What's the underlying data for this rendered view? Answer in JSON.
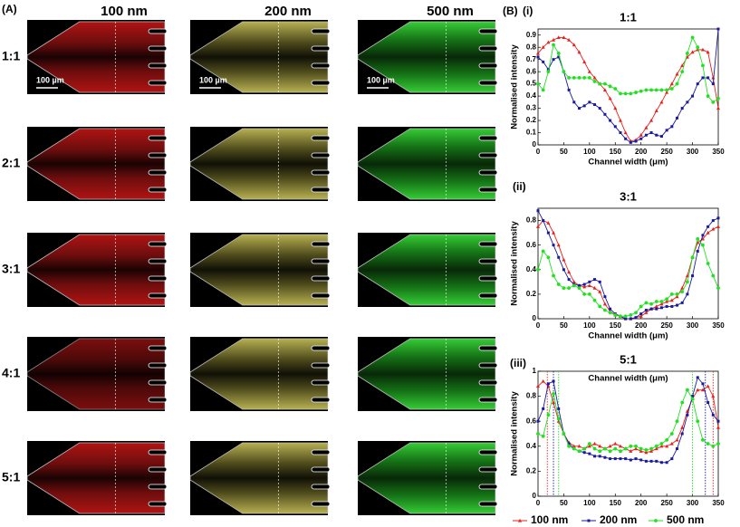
{
  "panel_a": {
    "label": "(A)",
    "columns": [
      "100 nm",
      "200 nm",
      "500 nm"
    ],
    "rows": [
      "1:1",
      "2:1",
      "3:1",
      "4:1",
      "5:1"
    ],
    "scale_bar": "100 µm"
  },
  "panel_b": {
    "label": "(B)",
    "subpanels": [
      "(i)",
      "(ii)",
      "(iii)"
    ]
  },
  "chart_data": [
    {
      "type": "line",
      "title": "1:1",
      "x_label": "Channel width (μm)",
      "y_label": "Normalised intensity",
      "x": [
        0,
        10,
        20,
        30,
        40,
        50,
        60,
        70,
        80,
        90,
        100,
        110,
        120,
        130,
        140,
        150,
        160,
        170,
        180,
        190,
        200,
        210,
        220,
        230,
        240,
        250,
        260,
        270,
        280,
        290,
        300,
        310,
        320,
        330,
        340,
        350
      ],
      "xlim": [
        0,
        350
      ],
      "xticks": [
        0,
        50,
        100,
        150,
        200,
        250,
        300,
        350
      ],
      "ylim": [
        0,
        0.95
      ],
      "yticks": [
        0,
        0.1,
        0.2,
        0.3,
        0.4,
        0.5,
        0.6,
        0.7,
        0.8,
        0.9
      ],
      "series": [
        {
          "name": "100 nm",
          "color": "#e8201c",
          "marker": "triangle",
          "values": [
            0.75,
            0.8,
            0.84,
            0.86,
            0.88,
            0.88,
            0.86,
            0.82,
            0.76,
            0.68,
            0.6,
            0.55,
            0.5,
            0.45,
            0.38,
            0.3,
            0.2,
            0.1,
            0.03,
            0.04,
            0.08,
            0.14,
            0.2,
            0.28,
            0.35,
            0.43,
            0.5,
            0.58,
            0.65,
            0.72,
            0.76,
            0.78,
            0.78,
            0.76,
            0.55,
            0.3
          ]
        },
        {
          "name": "200 nm",
          "color": "#1a1aa0",
          "marker": "square",
          "values": [
            0.72,
            0.68,
            0.62,
            0.7,
            0.72,
            0.6,
            0.45,
            0.35,
            0.3,
            0.32,
            0.35,
            0.33,
            0.3,
            0.25,
            0.2,
            0.15,
            0.1,
            0.05,
            0.02,
            0.03,
            0.05,
            0.08,
            0.1,
            0.08,
            0.07,
            0.12,
            0.15,
            0.22,
            0.3,
            0.35,
            0.4,
            0.5,
            0.55,
            0.55,
            0.5,
            0.95
          ]
        },
        {
          "name": "500 nm",
          "color": "#22e022",
          "marker": "circle",
          "values": [
            0.5,
            0.45,
            0.6,
            0.82,
            0.75,
            0.6,
            0.55,
            0.55,
            0.55,
            0.55,
            0.55,
            0.52,
            0.5,
            0.5,
            0.48,
            0.46,
            0.42,
            0.42,
            0.42,
            0.43,
            0.44,
            0.45,
            0.45,
            0.45,
            0.45,
            0.45,
            0.46,
            0.5,
            0.6,
            0.75,
            0.88,
            0.8,
            0.65,
            0.4,
            0.35,
            0.38
          ]
        }
      ]
    },
    {
      "type": "line",
      "title": "3:1",
      "x_label": "Channel width (μm)",
      "y_label": "Normalised intensity",
      "x": [
        0,
        10,
        20,
        30,
        40,
        50,
        60,
        70,
        80,
        90,
        100,
        110,
        120,
        130,
        140,
        150,
        160,
        170,
        180,
        190,
        200,
        210,
        220,
        230,
        240,
        250,
        260,
        270,
        280,
        290,
        300,
        310,
        320,
        330,
        340,
        350
      ],
      "xlim": [
        0,
        350
      ],
      "xticks": [
        0,
        50,
        100,
        150,
        200,
        250,
        300,
        350
      ],
      "ylim": [
        0,
        0.9
      ],
      "yticks": [
        0,
        0.2,
        0.4,
        0.6,
        0.8
      ],
      "series": [
        {
          "color": "#e8201c",
          "marker": "triangle",
          "values": [
            0.75,
            0.8,
            0.78,
            0.7,
            0.6,
            0.48,
            0.38,
            0.3,
            0.27,
            0.26,
            0.27,
            0.25,
            0.22,
            0.12,
            0.06,
            0.03,
            0.02,
            0,
            0,
            0.01,
            0.02,
            0.05,
            0.08,
            0.1,
            0.12,
            0.14,
            0.15,
            0.18,
            0.25,
            0.35,
            0.5,
            0.62,
            0.65,
            0.7,
            0.73,
            0.75
          ]
        },
        {
          "color": "#1a1aa0",
          "marker": "square",
          "values": [
            0.88,
            0.8,
            0.7,
            0.6,
            0.5,
            0.4,
            0.32,
            0.28,
            0.27,
            0.28,
            0.3,
            0.32,
            0.3,
            0.18,
            0.08,
            0.04,
            0.02,
            0,
            0,
            0.01,
            0.04,
            0.07,
            0.08,
            0.08,
            0.09,
            0.1,
            0.1,
            0.11,
            0.13,
            0.2,
            0.35,
            0.55,
            0.68,
            0.75,
            0.8,
            0.82
          ]
        },
        {
          "color": "#22e022",
          "marker": "circle",
          "values": [
            0.4,
            0.55,
            0.5,
            0.35,
            0.28,
            0.25,
            0.25,
            0.27,
            0.25,
            0.2,
            0.2,
            0.15,
            0.1,
            0.07,
            0.05,
            0.03,
            0.02,
            0.02,
            0.03,
            0.05,
            0.1,
            0.13,
            0.12,
            0.14,
            0.14,
            0.16,
            0.2,
            0.2,
            0.22,
            0.3,
            0.5,
            0.65,
            0.6,
            0.45,
            0.35,
            0.25
          ]
        }
      ]
    },
    {
      "type": "line",
      "title": "5:1",
      "x_label": "Channel width (μm)",
      "y_label": "Normalised intensity",
      "x": [
        0,
        10,
        20,
        30,
        40,
        50,
        60,
        70,
        80,
        90,
        100,
        110,
        120,
        130,
        140,
        150,
        160,
        170,
        180,
        190,
        200,
        210,
        220,
        230,
        240,
        250,
        260,
        270,
        280,
        290,
        300,
        310,
        320,
        330,
        340,
        350
      ],
      "xlim": [
        0,
        350
      ],
      "xticks": [
        0,
        50,
        100,
        150,
        200,
        250,
        300,
        350
      ],
      "ylim": [
        0,
        1
      ],
      "yticks": [
        0,
        0.2,
        0.4,
        0.6,
        0.8,
        1
      ],
      "vlines": [
        {
          "x": 18,
          "color": "#e8201c"
        },
        {
          "x": 30,
          "color": "#1a1aa0"
        },
        {
          "x": 40,
          "color": "#22e022"
        },
        {
          "x": 300,
          "color": "#22e022"
        },
        {
          "x": 325,
          "color": "#1a1aa0"
        },
        {
          "x": 340,
          "color": "#e8201c"
        }
      ],
      "series": [
        {
          "color": "#e8201c",
          "marker": "triangle",
          "values": [
            0.88,
            0.92,
            0.88,
            0.75,
            0.6,
            0.5,
            0.43,
            0.4,
            0.4,
            0.38,
            0.4,
            0.42,
            0.4,
            0.38,
            0.4,
            0.42,
            0.4,
            0.38,
            0.36,
            0.38,
            0.36,
            0.35,
            0.36,
            0.38,
            0.4,
            0.4,
            0.42,
            0.45,
            0.55,
            0.68,
            0.78,
            0.85,
            0.85,
            0.88,
            0.8,
            0.55
          ]
        },
        {
          "color": "#1a1aa0",
          "marker": "square",
          "values": [
            0.6,
            0.7,
            0.9,
            0.92,
            0.7,
            0.5,
            0.42,
            0.38,
            0.36,
            0.35,
            0.34,
            0.32,
            0.32,
            0.31,
            0.3,
            0.3,
            0.3,
            0.3,
            0.29,
            0.3,
            0.29,
            0.28,
            0.28,
            0.28,
            0.27,
            0.27,
            0.3,
            0.38,
            0.5,
            0.65,
            0.8,
            0.95,
            0.9,
            0.75,
            0.65,
            0.6
          ]
        },
        {
          "color": "#22e022",
          "marker": "circle",
          "values": [
            0.5,
            0.48,
            0.65,
            0.82,
            0.62,
            0.5,
            0.4,
            0.38,
            0.36,
            0.38,
            0.42,
            0.38,
            0.36,
            0.38,
            0.36,
            0.38,
            0.36,
            0.38,
            0.4,
            0.4,
            0.38,
            0.37,
            0.38,
            0.4,
            0.42,
            0.45,
            0.5,
            0.6,
            0.75,
            0.85,
            0.78,
            0.6,
            0.45,
            0.42,
            0.4,
            0.42
          ]
        }
      ]
    }
  ]
}
